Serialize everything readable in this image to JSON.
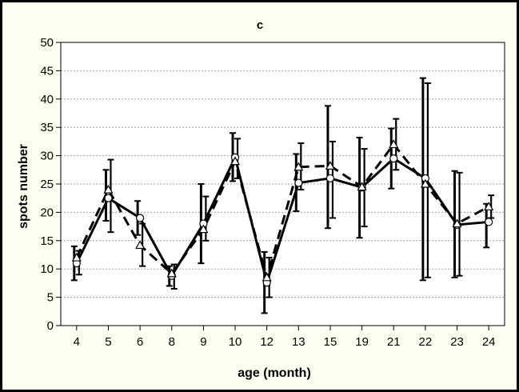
{
  "chart_data": {
    "type": "line",
    "title": "c",
    "xlabel": "age (month)",
    "ylabel": "spots number",
    "categories": [
      "4",
      "5",
      "6",
      "8",
      "9",
      "10",
      "12",
      "13",
      "15",
      "19",
      "21",
      "22",
      "23",
      "24"
    ],
    "ylim": [
      0,
      50
    ],
    "yticks": [
      0,
      5,
      10,
      15,
      20,
      25,
      30,
      35,
      40,
      45,
      50
    ],
    "grid": true,
    "series": [
      {
        "marker": "circle",
        "line_style": "solid",
        "values": [
          11.0,
          22.5,
          19.0,
          8.8,
          18.0,
          29.7,
          7.6,
          25.2,
          26.0,
          24.4,
          29.5,
          26.0,
          17.8,
          18.3
        ],
        "error_low": [
          8.0,
          18.5,
          16.0,
          7.0,
          11.0,
          25.5,
          2.2,
          20.2,
          17.2,
          15.5,
          24.2,
          8.0,
          8.5,
          13.8
        ],
        "error_high": [
          14.0,
          27.5,
          22.0,
          10.5,
          25.0,
          34.0,
          13.0,
          30.3,
          38.8,
          33.2,
          34.8,
          43.7,
          27.3,
          21.5
        ]
      },
      {
        "marker": "triangle",
        "line_style": "dashed",
        "values": [
          12.0,
          24.0,
          14.2,
          9.2,
          17.0,
          29.0,
          8.5,
          28.0,
          28.2,
          24.5,
          32.0,
          25.0,
          18.0,
          21.0
        ],
        "error_low": [
          9.0,
          16.5,
          10.5,
          6.5,
          15.0,
          26.0,
          5.0,
          24.0,
          19.0,
          17.5,
          27.5,
          8.5,
          8.8,
          19.0
        ],
        "error_high": [
          13.2,
          29.3,
          18.0,
          10.8,
          22.8,
          33.0,
          12.0,
          32.2,
          32.5,
          31.2,
          36.5,
          42.8,
          27.0,
          23.0
        ]
      }
    ],
    "colors": {
      "line": "#000000",
      "grid": "#a0a0a0",
      "frame_bg": "#fffff2",
      "plot_bg": "#ffffff"
    }
  }
}
